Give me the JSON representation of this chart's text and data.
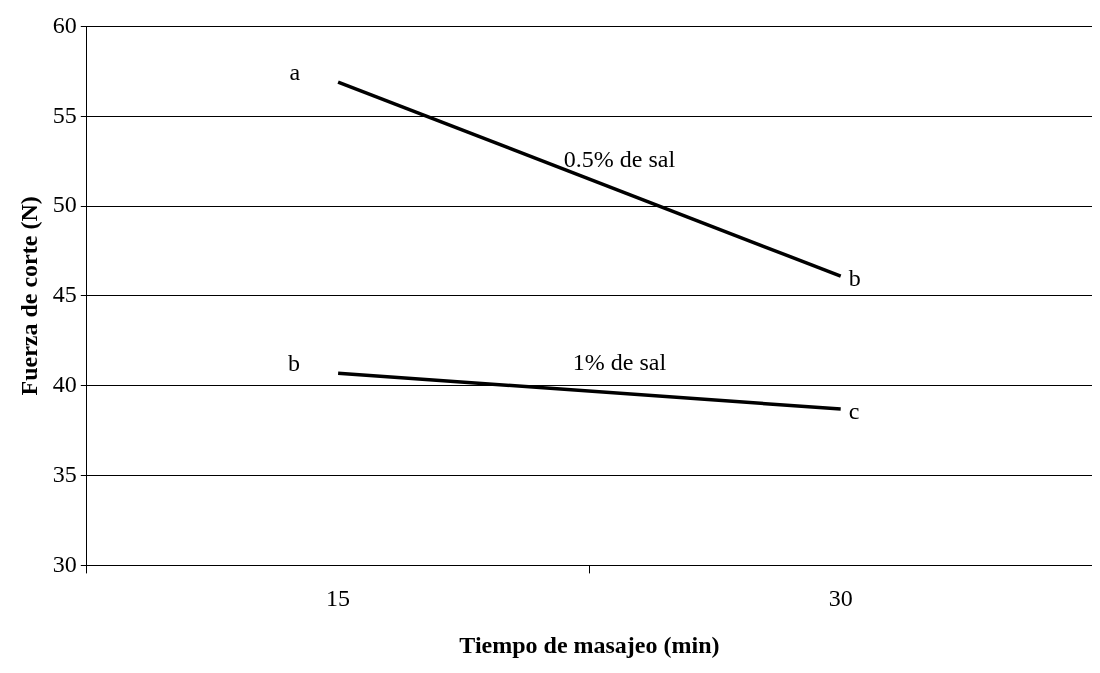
{
  "chart_data": {
    "type": "line",
    "xlabel": "Tiempo de masajeo (min)",
    "ylabel": "Fuerza de corte (N)",
    "categories": [
      "15",
      "30"
    ],
    "series": [
      {
        "name": "0.5% de sal",
        "color": "#000000",
        "values": [
          56.9,
          46.1
        ]
      },
      {
        "name": "1% de sal",
        "color": "#000000",
        "values": [
          40.7,
          38.7
        ]
      }
    ],
    "ylim": [
      30,
      60
    ],
    "yticks": [
      30,
      35,
      40,
      45,
      50,
      55,
      60
    ],
    "grid": "y",
    "legend": false,
    "marker": "none",
    "line_style": "solid",
    "annotations": [
      {
        "text": "a",
        "x": "15",
        "y": 56.9
      },
      {
        "text": "b",
        "x": "30",
        "y": 46.1
      },
      {
        "text": "b",
        "x": "15",
        "y": 40.7
      },
      {
        "text": "c",
        "x": "30",
        "y": 38.7
      }
    ]
  }
}
